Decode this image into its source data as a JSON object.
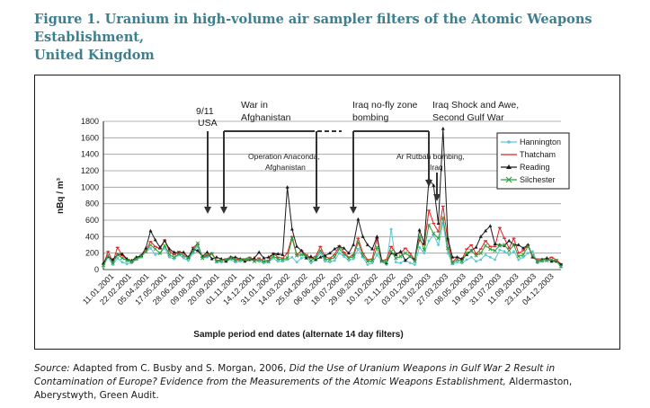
{
  "figure": {
    "title_line1": "Figure 1. Uranium in high-volume air sampler filters of the Atomic Weapons Establishment,",
    "title_line2": "United Kingdom"
  },
  "source": {
    "label": "Source:",
    "before_title": " Adapted from C. Busby and S. Morgan, 2006, ",
    "title": "Did the Use of Uranium Weapons in Gulf War 2 Result in Contamination of Europe? Evidence from the Measurements of the Atomic Weapons Establishment,",
    "after_title": " Aldermaston, Aberystwyth, Green Audit."
  },
  "chart_data": {
    "type": "line",
    "xlabel": "Sample period end dates (alternate 14 day filters)",
    "ylabel": "nBq / m³",
    "ylim": [
      0,
      1800
    ],
    "yticks": [
      0,
      200,
      400,
      600,
      800,
      1000,
      1200,
      1400,
      1600,
      1800
    ],
    "grid": "horizontal",
    "legend_position": "right",
    "x_tick_labels": [
      "11.01.2001",
      "22.02.2001",
      "05.04.2001",
      "17.05.2001",
      "28.06.2001",
      "09.08.2001",
      "20.09.2001",
      "01.11.2001",
      "14.12.2001",
      "31.01.2002",
      "14.03.2002",
      "25.04.2002",
      "06.06.2002",
      "18.07.2002",
      "29.08.2002",
      "10.10.2002",
      "21.11.2002",
      "03.01.2003",
      "13.02.2003",
      "27.03.2003",
      "08.05.2003",
      "19.06.2003",
      "31.07.2003",
      "11.09.2003",
      "23.10.2003",
      "04.12.2003"
    ],
    "colors": {
      "Hannington": "#5bc8d8",
      "Thatcham": "#e02020",
      "Reading": "#1a1a1a",
      "Silchester": "#2e9e3e"
    },
    "series": [
      {
        "name": "Hannington",
        "marker": "circle",
        "values": [
          40,
          150,
          60,
          140,
          90,
          70,
          80,
          120,
          150,
          220,
          260,
          180,
          200,
          260,
          150,
          130,
          180,
          140,
          110,
          200,
          280,
          140,
          150,
          200,
          90,
          90,
          100,
          120,
          90,
          100,
          110,
          140,
          110,
          100,
          80,
          90,
          140,
          100,
          100,
          120,
          150,
          90,
          140,
          150,
          80,
          120,
          200,
          100,
          90,
          110,
          200,
          160,
          110,
          130,
          250,
          150,
          60,
          80,
          180,
          100,
          60,
          490,
          90,
          80,
          120,
          80,
          60,
          270,
          200,
          350,
          420,
          300,
          560,
          200,
          70,
          90,
          80,
          120,
          150,
          100,
          120,
          180,
          150,
          120,
          240,
          220,
          180,
          220,
          120,
          150,
          200,
          220,
          80,
          100,
          120,
          100,
          100,
          30
        ]
      },
      {
        "name": "Thatcham",
        "marker": "dash",
        "values": [
          60,
          220,
          90,
          270,
          170,
          120,
          90,
          150,
          160,
          230,
          340,
          280,
          250,
          360,
          220,
          180,
          220,
          200,
          140,
          270,
          310,
          150,
          180,
          200,
          110,
          120,
          130,
          150,
          120,
          130,
          130,
          150,
          110,
          140,
          100,
          110,
          200,
          150,
          140,
          200,
          400,
          180,
          230,
          180,
          140,
          160,
          280,
          150,
          140,
          180,
          290,
          210,
          150,
          180,
          380,
          200,
          120,
          130,
          380,
          110,
          120,
          280,
          200,
          200,
          260,
          200,
          120,
          360,
          300,
          720,
          560,
          460,
          770,
          350,
          90,
          150,
          120,
          250,
          300,
          190,
          250,
          350,
          280,
          280,
          510,
          380,
          260,
          380,
          200,
          230,
          300,
          140,
          130,
          130,
          130,
          150,
          120,
          70
        ]
      },
      {
        "name": "Reading",
        "marker": "triangle",
        "values": [
          80,
          160,
          120,
          180,
          190,
          130,
          110,
          150,
          170,
          260,
          470,
          360,
          270,
          350,
          250,
          210,
          200,
          210,
          150,
          250,
          230,
          160,
          210,
          130,
          150,
          130,
          100,
          150,
          150,
          130,
          100,
          120,
          140,
          210,
          140,
          150,
          190,
          190,
          180,
          1000,
          490,
          280,
          230,
          140,
          160,
          120,
          150,
          170,
          200,
          250,
          280,
          260,
          200,
          300,
          610,
          400,
          300,
          250,
          400,
          110,
          80,
          200,
          180,
          220,
          110,
          160,
          120,
          480,
          320,
          1100,
          1020,
          560,
          1710,
          380,
          150,
          150,
          130,
          180,
          230,
          270,
          400,
          470,
          530,
          310,
          300,
          290,
          350,
          300,
          300,
          260,
          300,
          160,
          100,
          120,
          140,
          100,
          100,
          60
        ]
      },
      {
        "name": "Silchester",
        "marker": "x",
        "values": [
          50,
          170,
          80,
          180,
          140,
          110,
          100,
          130,
          160,
          220,
          300,
          250,
          200,
          290,
          180,
          150,
          190,
          170,
          140,
          220,
          320,
          140,
          170,
          190,
          100,
          110,
          120,
          140,
          110,
          120,
          120,
          130,
          100,
          120,
          100,
          100,
          160,
          130,
          120,
          140,
          380,
          170,
          180,
          170,
          110,
          140,
          230,
          130,
          120,
          150,
          250,
          190,
          140,
          160,
          330,
          170,
          100,
          110,
          270,
          100,
          90,
          220,
          140,
          160,
          200,
          160,
          100,
          400,
          240,
          540,
          440,
          380,
          630,
          260,
          80,
          120,
          100,
          200,
          230,
          170,
          200,
          290,
          250,
          230,
          290,
          300,
          230,
          300,
          160,
          180,
          280,
          170,
          100,
          110,
          110,
          120,
          110,
          40
        ]
      }
    ],
    "annotations": [
      {
        "text_lines": [
          "9/11",
          "USA"
        ],
        "at_date": "9/11 2001"
      },
      {
        "text_lines": [
          "War in",
          "Afghanistan"
        ]
      },
      {
        "text_lines": [
          "Operation Anaconda,",
          "Afghanistan"
        ]
      },
      {
        "text_lines": [
          "Iraq no-fly zone",
          "bombing"
        ]
      },
      {
        "text_lines": [
          "Iraq Shock and Awe,",
          "Second Gulf War"
        ]
      },
      {
        "text_lines": [
          "Ar Rutbah bombing,",
          "Iraq"
        ]
      }
    ]
  }
}
